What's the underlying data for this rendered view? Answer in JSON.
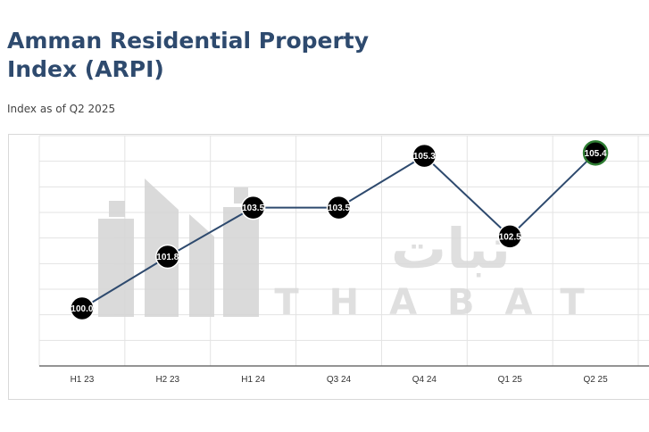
{
  "header": {
    "title": "Amman Residential Property Index (ARPI)",
    "subtitle": "Index as of Q2 2025"
  },
  "watermark": {
    "latin": "THABAT",
    "arabic": "ثبات"
  },
  "chart_data": {
    "type": "line",
    "title": "Amman Residential Property Index (ARPI)",
    "subtitle": "Index as of Q2 2025",
    "categories": [
      "H1 23",
      "H2 23",
      "H1 24",
      "Q3 24",
      "Q4 24",
      "Q1 25",
      "Q2 25"
    ],
    "series": [
      {
        "values": [
          100.0,
          101.8,
          103.5,
          103.5,
          105.3,
          102.5,
          105.4
        ],
        "labels": [
          "100.0",
          "101.8",
          "103.5",
          "103.5",
          "105.3",
          "102.5",
          "105.4"
        ]
      }
    ],
    "ylim": [
      98,
      106
    ],
    "grid": true,
    "legend": "none",
    "colors": {
      "line": "#2e4a6e",
      "marker": "#000000",
      "highlight_border": "#2e7d32",
      "grid": "#e3e3e3"
    }
  }
}
